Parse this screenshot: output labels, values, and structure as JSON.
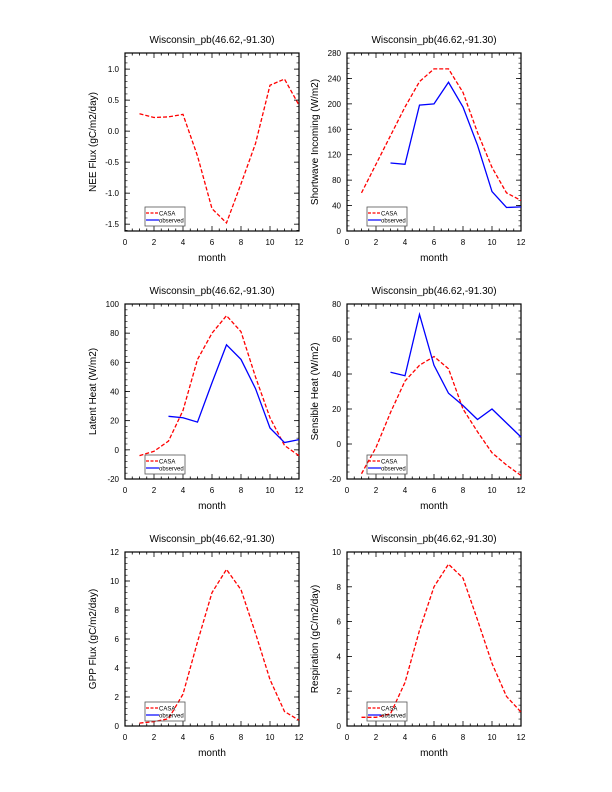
{
  "chart_data": [
    {
      "type": "line",
      "title": "Wisconsin_pb(46.62,-91.30)",
      "xlabel": "month",
      "ylabel": "NEE Flux (gC/m2/day)",
      "xlim": [
        0,
        12
      ],
      "xticks": [
        0,
        2,
        4,
        6,
        8,
        10,
        12
      ],
      "ylim": [
        -1.61,
        1.26
      ],
      "yticks": [
        "-1.5",
        "-1.0",
        "-0.5",
        "0.0",
        "0.5",
        "1.0"
      ],
      "legend": "bottom-left",
      "series": [
        {
          "name": "CASA",
          "color": "#ff0000",
          "style": "dashed",
          "x": [
            1,
            2,
            3,
            4,
            5,
            6,
            7,
            8,
            9,
            10,
            11,
            12
          ],
          "values": [
            0.28,
            0.22,
            0.23,
            0.27,
            -0.4,
            -1.25,
            -1.48,
            -0.85,
            -0.2,
            0.74,
            0.84,
            0.42
          ]
        },
        {
          "name": "observed",
          "color": "#0000ff",
          "style": "solid",
          "x": [],
          "values": []
        }
      ]
    },
    {
      "type": "line",
      "title": "Wisconsin_pb(46.62,-91.30)",
      "xlabel": "month",
      "ylabel": "Shortwave Incoming (W/m2)",
      "xlim": [
        0,
        12
      ],
      "xticks": [
        0,
        2,
        4,
        6,
        8,
        10,
        12
      ],
      "ylim": [
        0,
        280
      ],
      "yticks": [
        "0",
        "40",
        "80",
        "120",
        "160",
        "200",
        "240",
        "280"
      ],
      "legend": "bottom-left",
      "series": [
        {
          "name": "CASA",
          "color": "#ff0000",
          "style": "dashed",
          "x": [
            1,
            2,
            3,
            4,
            5,
            6,
            7,
            8,
            9,
            10,
            11,
            12
          ],
          "values": [
            60,
            105,
            150,
            195,
            235,
            255,
            255,
            218,
            155,
            100,
            60,
            48
          ]
        },
        {
          "name": "observed",
          "color": "#0000ff",
          "style": "solid",
          "x": [
            3,
            4,
            5,
            6,
            7,
            8,
            9,
            10,
            11,
            12
          ],
          "values": [
            107,
            105,
            198,
            200,
            234,
            195,
            135,
            62,
            37,
            38
          ]
        }
      ]
    },
    {
      "type": "line",
      "title": "Wisconsin_pb(46.62,-91.30)",
      "xlabel": "month",
      "ylabel": "Latent Heat (W/m2)",
      "xlim": [
        0,
        12
      ],
      "xticks": [
        0,
        2,
        4,
        6,
        8,
        10,
        12
      ],
      "ylim": [
        -20,
        100
      ],
      "yticks": [
        "-20",
        "0",
        "20",
        "40",
        "60",
        "80",
        "100"
      ],
      "legend": "bottom-left",
      "series": [
        {
          "name": "CASA",
          "color": "#ff0000",
          "style": "dashed",
          "x": [
            1,
            2,
            3,
            4,
            5,
            6,
            7,
            8,
            9,
            10,
            11,
            12
          ],
          "values": [
            -4,
            -1,
            6,
            27,
            62,
            80,
            92,
            81,
            50,
            22,
            3,
            -4
          ]
        },
        {
          "name": "observed",
          "color": "#0000ff",
          "style": "solid",
          "x": [
            3,
            4,
            5,
            6,
            7,
            8,
            9,
            10,
            11,
            12
          ],
          "values": [
            23,
            22,
            19,
            46,
            72,
            62,
            42,
            15,
            5,
            7
          ]
        }
      ]
    },
    {
      "type": "line",
      "title": "Wisconsin_pb(46.62,-91.30)",
      "xlabel": "month",
      "ylabel": "Sensible Heat (W/m2)",
      "xlim": [
        0,
        12
      ],
      "xticks": [
        0,
        2,
        4,
        6,
        8,
        10,
        12
      ],
      "ylim": [
        -20,
        80
      ],
      "yticks": [
        "-20",
        "0",
        "20",
        "40",
        "60",
        "80"
      ],
      "legend": "bottom-left",
      "series": [
        {
          "name": "CASA",
          "color": "#ff0000",
          "style": "dashed",
          "x": [
            1,
            2,
            3,
            4,
            5,
            6,
            7,
            8,
            9,
            10,
            11,
            12
          ],
          "values": [
            -17,
            -2,
            18,
            36,
            45,
            50,
            43,
            20,
            7,
            -5,
            -12,
            -18
          ]
        },
        {
          "name": "observed",
          "color": "#0000ff",
          "style": "solid",
          "x": [
            3,
            4,
            5,
            6,
            7,
            8,
            9,
            10,
            11,
            12
          ],
          "values": [
            41,
            39,
            74,
            45,
            29,
            22,
            14,
            20,
            12,
            4
          ]
        }
      ]
    },
    {
      "type": "line",
      "title": "Wisconsin_pb(46.62,-91.30)",
      "xlabel": "month",
      "ylabel": "GPP Flux (gC/m2/day)",
      "xlim": [
        0,
        12
      ],
      "xticks": [
        0,
        2,
        4,
        6,
        8,
        10,
        12
      ],
      "ylim": [
        0,
        12
      ],
      "yticks": [
        "0",
        "2",
        "4",
        "6",
        "8",
        "10",
        "12"
      ],
      "legend": "bottom-left",
      "series": [
        {
          "name": "CASA",
          "color": "#ff0000",
          "style": "dashed",
          "x": [
            1,
            2,
            3,
            4,
            5,
            6,
            7,
            8,
            9,
            10,
            11,
            12
          ],
          "values": [
            0.2,
            0.3,
            0.5,
            2.2,
            5.8,
            9.2,
            10.8,
            9.4,
            6.4,
            3.2,
            1.0,
            0.4
          ]
        },
        {
          "name": "observed",
          "color": "#0000ff",
          "style": "solid",
          "x": [],
          "values": []
        }
      ]
    },
    {
      "type": "line",
      "title": "Wisconsin_pb(46.62,-91.30)",
      "xlabel": "month",
      "ylabel": "Respiration (gC/m2/day)",
      "xlim": [
        0,
        12
      ],
      "xticks": [
        0,
        2,
        4,
        6,
        8,
        10,
        12
      ],
      "ylim": [
        0,
        10
      ],
      "yticks": [
        "0",
        "2",
        "4",
        "6",
        "8",
        "10"
      ],
      "legend": "bottom-left",
      "series": [
        {
          "name": "CASA",
          "color": "#ff0000",
          "style": "dashed",
          "x": [
            1,
            2,
            3,
            4,
            5,
            6,
            7,
            8,
            9,
            10,
            11,
            12
          ],
          "values": [
            0.5,
            0.5,
            0.7,
            2.5,
            5.5,
            8.0,
            9.3,
            8.5,
            6.1,
            3.6,
            1.7,
            0.8
          ]
        },
        {
          "name": "observed",
          "color": "#0000ff",
          "style": "solid",
          "x": [],
          "values": []
        }
      ]
    }
  ]
}
